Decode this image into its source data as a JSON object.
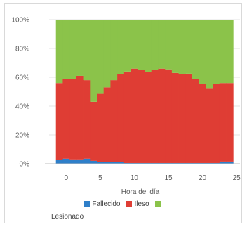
{
  "chart_data": {
    "type": "area",
    "stacked": true,
    "percent": true,
    "xlabel": "Hora del día",
    "ylabel": "",
    "xlim": [
      -2.5,
      25.5
    ],
    "ylim": [
      0,
      100
    ],
    "x_ticks": [
      0,
      5,
      10,
      15,
      20,
      25
    ],
    "y_ticks": [
      0,
      20,
      40,
      60,
      80,
      100
    ],
    "y_tick_labels": [
      "0%",
      "20%",
      "40%",
      "60%",
      "80%",
      "100%"
    ],
    "grid": "horizontal",
    "legend_position": "bottom",
    "x": [
      -1,
      0,
      1,
      2,
      3,
      4,
      5,
      6,
      7,
      8,
      9,
      10,
      11,
      12,
      13,
      14,
      15,
      16,
      17,
      18,
      19,
      20,
      21,
      22,
      23,
      24
    ],
    "series": [
      {
        "name": "Fallecido",
        "color": "#2f7fc9",
        "values": [
          2.5,
          3.5,
          3,
          3,
          3.5,
          2,
          1,
          1,
          1,
          1,
          0.5,
          0.5,
          0.5,
          0.5,
          0.5,
          0.5,
          0.5,
          0.5,
          0.5,
          0.5,
          0.5,
          0.5,
          0.5,
          0.5,
          1.5,
          1.5
        ]
      },
      {
        "name": "Ileso",
        "color": "#df3d34",
        "values": [
          53.5,
          55.5,
          56,
          58,
          54.5,
          41,
          47.5,
          52,
          57,
          61,
          63.5,
          65.5,
          64.5,
          63,
          64.5,
          65.5,
          65,
          62.5,
          61.5,
          62,
          58.5,
          55,
          52,
          55,
          54.5,
          54.5
        ]
      },
      {
        "name": "Lesionado",
        "color": "#8bc34a",
        "values": [
          44,
          41,
          41,
          39,
          42,
          57,
          51.5,
          47,
          42,
          38,
          36,
          34,
          35,
          36.5,
          35,
          34,
          34.5,
          37,
          38,
          37.5,
          41,
          44.5,
          47.5,
          44.5,
          44,
          44
        ]
      }
    ]
  },
  "legend": {
    "fallecido": "Fallecido",
    "ileso": "Ileso",
    "lesionado": "Lesionado"
  }
}
